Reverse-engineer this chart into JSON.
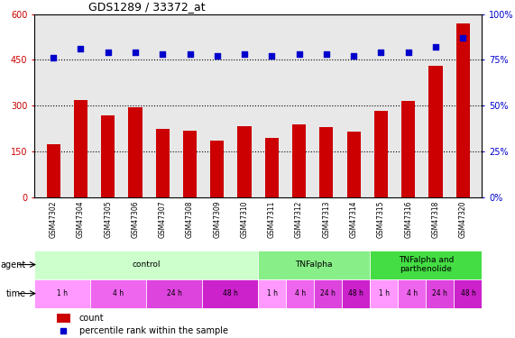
{
  "title": "GDS1289 / 33372_at",
  "samples": [
    "GSM47302",
    "GSM47304",
    "GSM47305",
    "GSM47306",
    "GSM47307",
    "GSM47308",
    "GSM47309",
    "GSM47310",
    "GSM47311",
    "GSM47312",
    "GSM47313",
    "GSM47314",
    "GSM47315",
    "GSM47316",
    "GSM47318",
    "GSM47320"
  ],
  "bar_values": [
    175,
    320,
    270,
    295,
    225,
    220,
    185,
    235,
    195,
    240,
    230,
    215,
    285,
    315,
    430,
    570
  ],
  "dot_values_pct": [
    76,
    81,
    79,
    79,
    78,
    78,
    77,
    78,
    77,
    78,
    78,
    77,
    79,
    79,
    82,
    87
  ],
  "bar_color": "#cc0000",
  "dot_color": "#0000cc",
  "ylim_left": [
    0,
    600
  ],
  "ylim_right": [
    0,
    100
  ],
  "yticks_left": [
    0,
    150,
    300,
    450,
    600
  ],
  "yticks_right": [
    0,
    25,
    50,
    75,
    100
  ],
  "ytick_labels_left": [
    "0",
    "150",
    "300",
    "450",
    "600"
  ],
  "ytick_labels_right": [
    "0%",
    "25%",
    "50%",
    "75%",
    "100%"
  ],
  "grid_values": [
    150,
    300,
    450
  ],
  "agent_groups": [
    {
      "label": "control",
      "start": 0,
      "end": 8,
      "color": "#ccffcc"
    },
    {
      "label": "TNFalpha",
      "start": 8,
      "end": 12,
      "color": "#88ee88"
    },
    {
      "label": "TNFalpha and\nparthenolide",
      "start": 12,
      "end": 16,
      "color": "#44dd44"
    }
  ],
  "time_groups": [
    {
      "label": "1 h",
      "start": 0,
      "end": 2,
      "color": "#ff99ff"
    },
    {
      "label": "4 h",
      "start": 2,
      "end": 4,
      "color": "#ee66ee"
    },
    {
      "label": "24 h",
      "start": 4,
      "end": 6,
      "color": "#dd44dd"
    },
    {
      "label": "48 h",
      "start": 6,
      "end": 8,
      "color": "#cc22cc"
    },
    {
      "label": "1 h",
      "start": 8,
      "end": 9,
      "color": "#ff99ff"
    },
    {
      "label": "4 h",
      "start": 9,
      "end": 10,
      "color": "#ee66ee"
    },
    {
      "label": "24 h",
      "start": 10,
      "end": 11,
      "color": "#dd44dd"
    },
    {
      "label": "48 h",
      "start": 11,
      "end": 12,
      "color": "#cc22cc"
    },
    {
      "label": "1 h",
      "start": 12,
      "end": 13,
      "color": "#ff99ff"
    },
    {
      "label": "4 h",
      "start": 13,
      "end": 14,
      "color": "#ee66ee"
    },
    {
      "label": "24 h",
      "start": 14,
      "end": 15,
      "color": "#dd44dd"
    },
    {
      "label": "48 h",
      "start": 15,
      "end": 16,
      "color": "#cc22cc"
    }
  ],
  "legend_count_color": "#cc0000",
  "legend_dot_color": "#0000cc",
  "background_color": "#ffffff",
  "plot_bg_color": "#e8e8e8"
}
